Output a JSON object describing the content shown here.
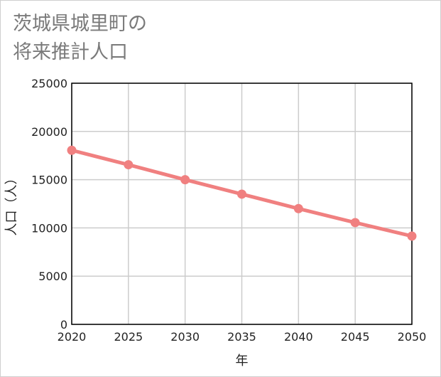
{
  "chart_data": {
    "type": "line",
    "title_lines": [
      "茨城県城里町の",
      "将来推計人口"
    ],
    "xlabel": "年",
    "ylabel": "人口（人）",
    "x": [
      2020,
      2025,
      2030,
      2035,
      2040,
      2045,
      2050
    ],
    "x_tick_labels": [
      "2020",
      "2025",
      "2030",
      "2035",
      "2040",
      "2045",
      "2050"
    ],
    "y_ticks": [
      0,
      5000,
      10000,
      15000,
      20000,
      25000
    ],
    "y_tick_labels": [
      "0",
      "5000",
      "10000",
      "15000",
      "20000",
      "25000"
    ],
    "ylim": [
      0,
      25000
    ],
    "xlim": [
      2020,
      2050
    ],
    "grid": true,
    "series": [
      {
        "name": "人口",
        "color": "#f08080",
        "values": [
          18050,
          16550,
          15000,
          13500,
          12000,
          10550,
          9150
        ]
      }
    ]
  }
}
